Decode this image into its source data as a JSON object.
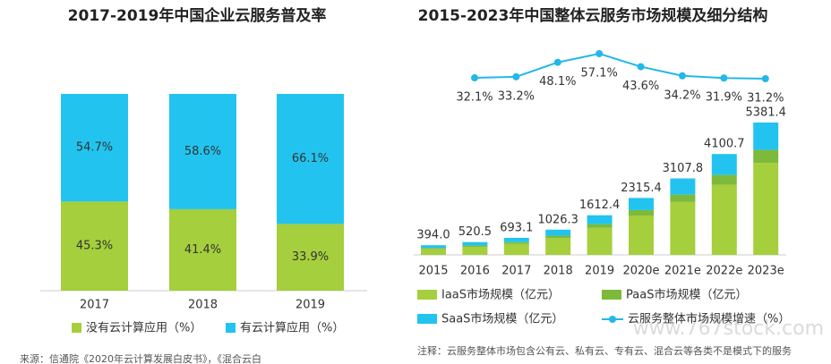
{
  "chart_data": [
    {
      "type": "stacked_bar",
      "title": "2017-2019年中国企业云服务普及率",
      "categories": [
        "2017",
        "2018",
        "2019"
      ],
      "series": [
        {
          "name": "没有云计算应用（%）",
          "color": "#a5cf3c",
          "values": [
            45.3,
            41.4,
            33.9
          ],
          "value_labels": [
            "45.3%",
            "41.4%",
            "33.9%"
          ]
        },
        {
          "name": "有云计算应用（%）",
          "color": "#22c4ef",
          "values": [
            54.7,
            58.6,
            66.1
          ],
          "value_labels": [
            "54.7%",
            "58.6%",
            "66.1%"
          ]
        }
      ]
    },
    {
      "type": "stacked_bar_line",
      "title": "2015-2023年中国整体云服务市场规模及细分结构",
      "categories": [
        "2015",
        "2016",
        "2017",
        "2018",
        "2019",
        "2020e",
        "2021e",
        "2022e",
        "2023e"
      ],
      "series": [
        {
          "name": "IaaS市场规模（亿元）",
          "color": "#a5cf3c",
          "values": [
            240,
            330,
            450,
            680,
            1100,
            1600,
            2150,
            2850,
            3740
          ]
        },
        {
          "name": "PaaS市场规模（亿元）",
          "color": "#7dba3c",
          "values": [
            40,
            50,
            70,
            100,
            150,
            220,
            300,
            400,
            530
          ]
        },
        {
          "name": "SaaS市场规模（亿元）",
          "color": "#22c4ef",
          "values": [
            114,
            140,
            173,
            246,
            362,
            495,
            658,
            851,
            1111
          ]
        }
      ],
      "totals": [
        394.0,
        520.5,
        693.1,
        1026.3,
        1612.4,
        2315.4,
        3107.8,
        4100.7,
        5381.4
      ],
      "totals_labels": [
        "394.0",
        "520.5",
        "693.1",
        "1026.3",
        "1612.4",
        "2315.4",
        "3107.8",
        "4100.7",
        "5381.4"
      ],
      "line": {
        "name": "云服务整体市场规模增速（%）",
        "color": "#22b8e8",
        "values": [
          32.1,
          33.2,
          48.1,
          57.1,
          43.6,
          34.2,
          31.9,
          31.2
        ],
        "value_labels": [
          "32.1%",
          "33.2%",
          "48.1%",
          "57.1%",
          "43.6%",
          "34.2%",
          "31.9%",
          "31.2%"
        ]
      }
    }
  ],
  "source": "来源：信通院《2020年云计算发展白皮书》，《混合云白",
  "note": "注释：云服务整体市场包含公有云、私有云、专有云、混合云等各类不是模式下的服务",
  "watermark": "www.767stock.com"
}
